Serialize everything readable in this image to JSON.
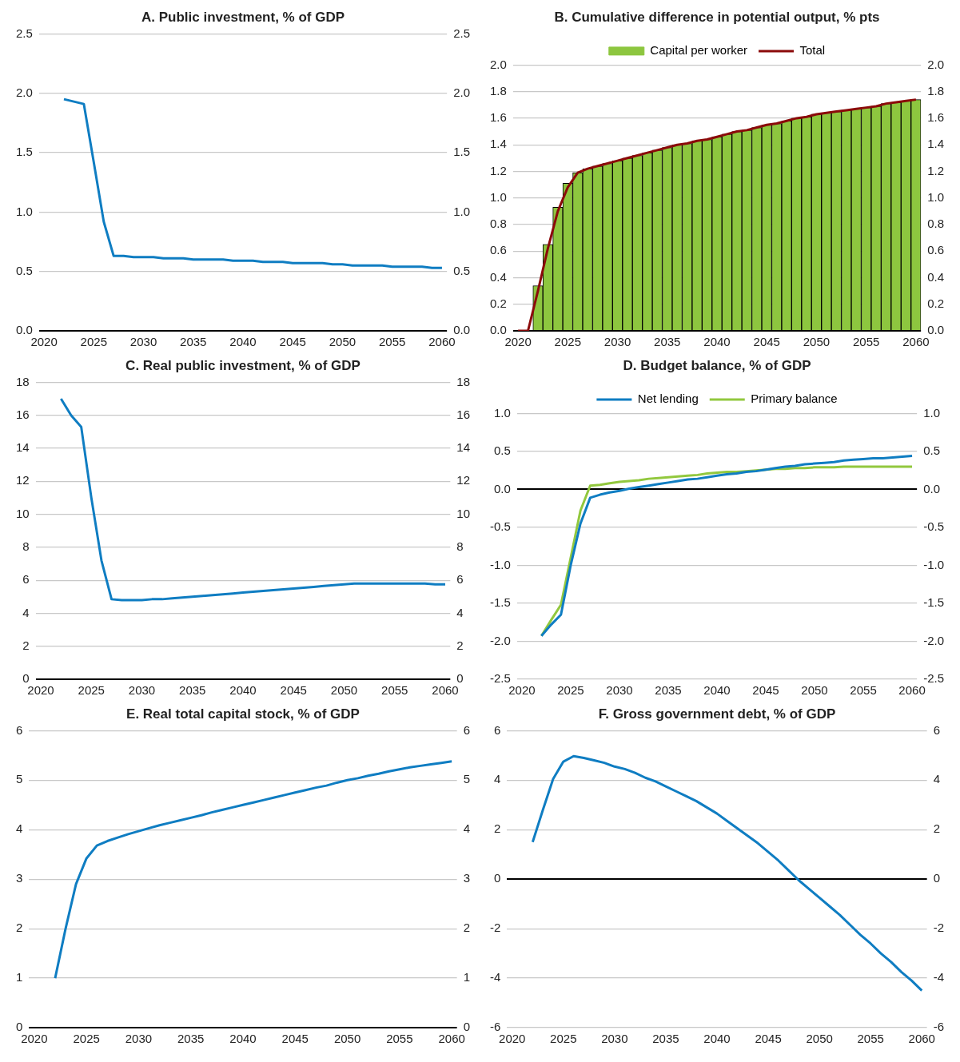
{
  "chart_data": [
    {
      "type": "line",
      "title": "A. Public investment, % of GDP",
      "categories": [
        "2020",
        null,
        null,
        null,
        null,
        "2025",
        null,
        null,
        null,
        null,
        "2030",
        null,
        null,
        null,
        null,
        "2035",
        null,
        null,
        null,
        null,
        "2040",
        null,
        null,
        null,
        null,
        "2045",
        null,
        null,
        null,
        null,
        "2050",
        null,
        null,
        null,
        null,
        "2055",
        null,
        null,
        null,
        null,
        "2060"
      ],
      "series": [
        {
          "color": "#0f7dc2",
          "values": [
            null,
            null,
            1.95,
            1.93,
            1.91,
            1.42,
            0.92,
            0.63,
            0.63,
            0.62,
            0.62,
            0.62,
            0.61,
            0.61,
            0.61,
            0.6,
            0.6,
            0.6,
            0.6,
            0.59,
            0.59,
            0.59,
            0.58,
            0.58,
            0.58,
            0.57,
            0.57,
            0.57,
            0.57,
            0.56,
            0.56,
            0.55,
            0.55,
            0.55,
            0.55,
            0.54,
            0.54,
            0.54,
            0.54,
            0.53,
            0.53
          ]
        }
      ],
      "ylim": [
        0,
        2.5
      ],
      "yticks": [
        {
          "value": 0,
          "label": "0.0"
        },
        0.5,
        {
          "value": 1,
          "label": "1.0"
        },
        1.5,
        {
          "value": 2,
          "label": "2.0"
        },
        2.5
      ],
      "y2lim": [
        0,
        2.5
      ],
      "y2ticks": [
        {
          "value": 0,
          "label": "0.0"
        },
        0.5,
        {
          "value": 1,
          "label": "1.0"
        },
        1.5,
        {
          "value": 2,
          "label": "2.0"
        },
        2.5
      ],
      "grid": "y"
    },
    {
      "type": "bar",
      "title": "B. Cumulative difference in potential output, % pts",
      "categories": [
        "2020",
        null,
        null,
        null,
        null,
        "2025",
        null,
        null,
        null,
        null,
        "2030",
        null,
        null,
        null,
        null,
        "2035",
        null,
        null,
        null,
        null,
        "2040",
        null,
        null,
        null,
        null,
        "2045",
        null,
        null,
        null,
        null,
        "2050",
        null,
        null,
        null,
        null,
        "2055",
        null,
        null,
        null,
        null,
        "2060"
      ],
      "series": [
        {
          "name": "Capital per worker",
          "type": "bar",
          "color": "#8dc63f",
          "values": [
            null,
            null,
            0.34,
            0.65,
            0.93,
            1.11,
            1.19,
            1.22,
            1.24,
            1.26,
            1.28,
            1.3,
            1.32,
            1.34,
            1.36,
            1.38,
            1.4,
            1.41,
            1.43,
            1.44,
            1.46,
            1.48,
            1.5,
            1.51,
            1.53,
            1.55,
            1.56,
            1.58,
            1.6,
            1.61,
            1.63,
            1.64,
            1.65,
            1.66,
            1.67,
            1.68,
            1.69,
            1.71,
            1.72,
            1.73,
            1.74
          ]
        },
        {
          "name": "Total",
          "type": "line",
          "color": "#8b0a0a",
          "values": [
            0,
            0,
            0.3,
            0.62,
            0.9,
            1.08,
            1.19,
            1.22,
            1.24,
            1.26,
            1.28,
            1.3,
            1.32,
            1.34,
            1.36,
            1.38,
            1.4,
            1.41,
            1.43,
            1.44,
            1.46,
            1.48,
            1.5,
            1.51,
            1.53,
            1.55,
            1.56,
            1.58,
            1.6,
            1.61,
            1.63,
            1.64,
            1.65,
            1.66,
            1.67,
            1.68,
            1.69,
            1.71,
            1.72,
            1.73,
            1.74
          ]
        }
      ],
      "ylim": [
        0,
        2
      ],
      "yticks": [
        {
          "value": 0,
          "label": "0.0"
        },
        0.2,
        0.4,
        0.6,
        0.8,
        {
          "value": 1,
          "label": "1.0"
        },
        1.2,
        1.4,
        1.6,
        1.8,
        {
          "value": 2,
          "label": "2.0"
        }
      ],
      "y2lim": [
        0,
        2
      ],
      "y2ticks": [
        {
          "value": 0,
          "label": "0.0"
        },
        0.2,
        0.4,
        0.6,
        0.8,
        {
          "value": 1,
          "label": "1.0"
        },
        1.2,
        1.4,
        1.6,
        1.8,
        {
          "value": 2,
          "label": "2.0"
        }
      ],
      "grid": "y",
      "legend": "top"
    },
    {
      "type": "line",
      "title": "C. Real public investment, % of GDP",
      "categories": [
        "2020",
        null,
        null,
        null,
        null,
        "2025",
        null,
        null,
        null,
        null,
        "2030",
        null,
        null,
        null,
        null,
        "2035",
        null,
        null,
        null,
        null,
        "2040",
        null,
        null,
        null,
        null,
        "2045",
        null,
        null,
        null,
        null,
        "2050",
        null,
        null,
        null,
        null,
        "2055",
        null,
        null,
        null,
        null,
        "2060"
      ],
      "series": [
        {
          "color": "#0f7dc2",
          "values": [
            null,
            null,
            17.0,
            16.0,
            15.3,
            11.0,
            7.2,
            4.85,
            4.8,
            4.8,
            4.8,
            4.85,
            4.85,
            4.9,
            4.95,
            5.0,
            5.05,
            5.1,
            5.15,
            5.2,
            5.25,
            5.3,
            5.35,
            5.4,
            5.45,
            5.5,
            5.55,
            5.6,
            5.65,
            5.7,
            5.75,
            5.8,
            5.8,
            5.8,
            5.8,
            5.8,
            5.8,
            5.8,
            5.8,
            5.75,
            5.75
          ]
        }
      ],
      "ylim": [
        0,
        18
      ],
      "yticks": [
        0,
        2,
        4,
        6,
        8,
        10,
        12,
        14,
        16,
        18
      ],
      "y2lim": [
        0,
        18
      ],
      "y2ticks": [
        0,
        2,
        4,
        6,
        8,
        10,
        12,
        14,
        16,
        18
      ],
      "grid": "y"
    },
    {
      "type": "line",
      "title": "D. Budget balance, % of GDP",
      "categories": [
        "2020",
        null,
        null,
        null,
        null,
        "2025",
        null,
        null,
        null,
        null,
        "2030",
        null,
        null,
        null,
        null,
        "2035",
        null,
        null,
        null,
        null,
        "2040",
        null,
        null,
        null,
        null,
        "2045",
        null,
        null,
        null,
        null,
        "2050",
        null,
        null,
        null,
        null,
        "2055",
        null,
        null,
        null,
        null,
        "2060"
      ],
      "series": [
        {
          "name": "Net lending",
          "color": "#0f7dc2",
          "values": [
            null,
            null,
            -1.93,
            -1.78,
            -1.65,
            -1.0,
            -0.45,
            -0.11,
            -0.07,
            -0.04,
            -0.02,
            0.01,
            0.03,
            0.05,
            0.07,
            0.09,
            0.11,
            0.13,
            0.14,
            0.16,
            0.18,
            0.2,
            0.21,
            0.23,
            0.24,
            0.26,
            0.28,
            0.3,
            0.31,
            0.33,
            0.34,
            0.35,
            0.36,
            0.38,
            0.39,
            0.4,
            0.41,
            0.41,
            0.42,
            0.43,
            0.44
          ]
        },
        {
          "name": "Primary balance",
          "color": "#92c83e",
          "values": [
            null,
            null,
            -1.93,
            -1.72,
            -1.52,
            -0.9,
            -0.28,
            0.05,
            0.06,
            0.08,
            0.1,
            0.11,
            0.12,
            0.14,
            0.15,
            0.16,
            0.17,
            0.18,
            0.19,
            0.21,
            0.22,
            0.23,
            0.23,
            0.24,
            0.25,
            0.26,
            0.27,
            0.27,
            0.28,
            0.28,
            0.29,
            0.29,
            0.29,
            0.3,
            0.3,
            0.3,
            0.3,
            0.3,
            0.3,
            0.3,
            0.3
          ]
        }
      ],
      "ylim": [
        -2.5,
        1
      ],
      "yticks": [
        -2.5,
        {
          "value": -2,
          "label": "-2.0"
        },
        -1.5,
        {
          "value": -1,
          "label": "-1.0"
        },
        -0.5,
        {
          "value": 0,
          "label": "0.0"
        },
        0.5,
        {
          "value": 1,
          "label": "1.0"
        }
      ],
      "y2lim": [
        -2.5,
        1
      ],
      "y2ticks": [
        -2.5,
        {
          "value": -2,
          "label": "-2.0"
        },
        -1.5,
        {
          "value": -1,
          "label": "-1.0"
        },
        -0.5,
        {
          "value": 0,
          "label": "0.0"
        },
        0.5,
        {
          "value": 1,
          "label": "1.0"
        }
      ],
      "grid": "y",
      "legend": "top"
    },
    {
      "type": "line",
      "title": "E. Real total capital stock, % of GDP",
      "categories": [
        "2020",
        null,
        null,
        null,
        null,
        "2025",
        null,
        null,
        null,
        null,
        "2030",
        null,
        null,
        null,
        null,
        "2035",
        null,
        null,
        null,
        null,
        "2040",
        null,
        null,
        null,
        null,
        "2045",
        null,
        null,
        null,
        null,
        "2050",
        null,
        null,
        null,
        null,
        "2055",
        null,
        null,
        null,
        null,
        "2060"
      ],
      "series": [
        {
          "color": "#0f7dc2",
          "values": [
            null,
            null,
            1.0,
            2.0,
            2.9,
            3.42,
            3.68,
            3.77,
            3.84,
            3.91,
            3.97,
            4.03,
            4.09,
            4.14,
            4.19,
            4.24,
            4.29,
            4.35,
            4.4,
            4.45,
            4.5,
            4.55,
            4.6,
            4.65,
            4.7,
            4.75,
            4.8,
            4.85,
            4.89,
            4.95,
            5.0,
            5.04,
            5.09,
            5.13,
            5.18,
            5.22,
            5.26,
            5.29,
            5.32,
            5.35,
            5.38
          ]
        }
      ],
      "ylim": [
        0,
        6
      ],
      "yticks": [
        0,
        1,
        2,
        3,
        4,
        5,
        6
      ],
      "y2lim": [
        0,
        6
      ],
      "y2ticks": [
        0,
        1,
        2,
        3,
        4,
        5,
        6
      ],
      "grid": "y"
    },
    {
      "type": "line",
      "title": "F. Gross government debt, % of GDP",
      "categories": [
        "2020",
        null,
        null,
        null,
        null,
        "2025",
        null,
        null,
        null,
        null,
        "2030",
        null,
        null,
        null,
        null,
        "2035",
        null,
        null,
        null,
        null,
        "2040",
        null,
        null,
        null,
        null,
        "2045",
        null,
        null,
        null,
        null,
        "2050",
        null,
        null,
        null,
        null,
        "2055",
        null,
        null,
        null,
        null,
        "2060"
      ],
      "series": [
        {
          "color": "#0f7dc2",
          "values": [
            null,
            null,
            1.5,
            2.8,
            4.05,
            4.75,
            4.97,
            4.9,
            4.8,
            4.7,
            4.55,
            4.45,
            4.3,
            4.1,
            3.95,
            3.75,
            3.55,
            3.35,
            3.15,
            2.9,
            2.65,
            2.35,
            2.05,
            1.75,
            1.45,
            1.1,
            0.75,
            0.35,
            -0.05,
            -0.4,
            -0.75,
            -1.1,
            -1.45,
            -1.85,
            -2.25,
            -2.6,
            -3.0,
            -3.35,
            -3.75,
            -4.1,
            -4.5
          ]
        }
      ],
      "ylim": [
        -6,
        6
      ],
      "yticks": [
        -6,
        -4,
        -2,
        0,
        2,
        4,
        6
      ],
      "y2lim": [
        -6,
        6
      ],
      "y2ticks": [
        -6,
        -4,
        -2,
        0,
        2,
        4,
        6
      ],
      "grid": "y"
    }
  ]
}
